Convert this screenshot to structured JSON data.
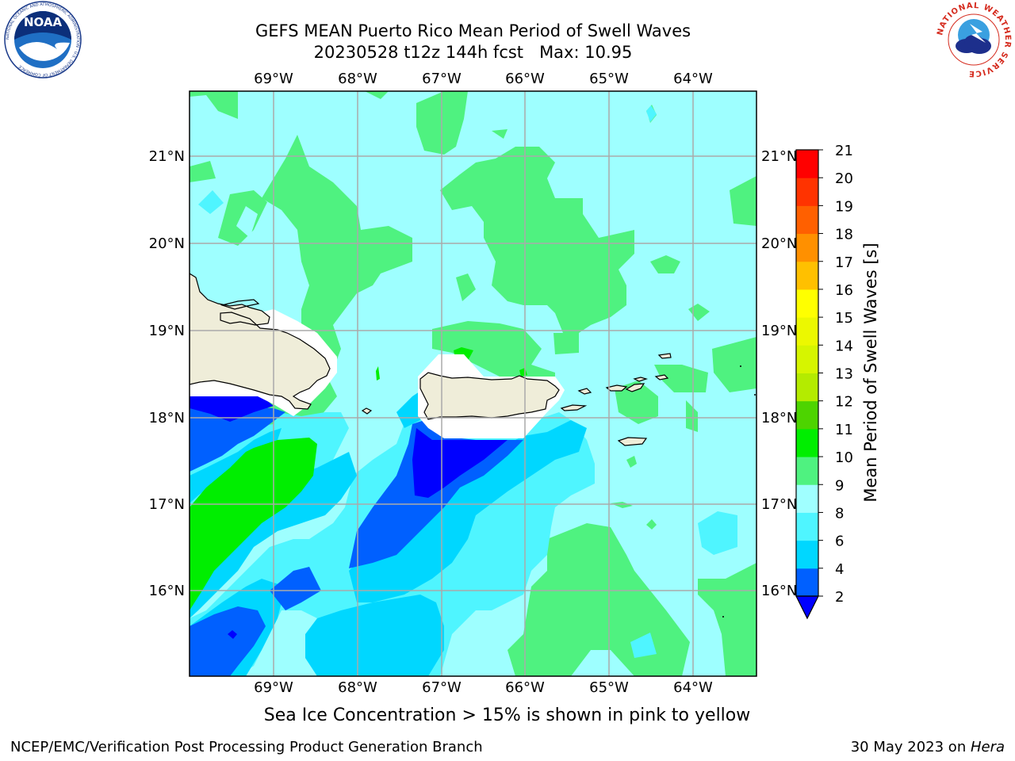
{
  "title_line1": "GEFS MEAN Puerto Rico Mean Period of Swell Waves",
  "title_line2": "20230528 t12z 144h fcst   Max: 10.95",
  "noaa_logo": {
    "name": "noaa-logo",
    "center_text": "NOAA",
    "ring_text": "NATIONAL OCEANIC AND ATMOSPHERIC ADMINISTRATION · U.S. DEPARTMENT OF COMMERCE"
  },
  "nws_logo": {
    "name": "nws-logo",
    "ring_text": "NATIONAL WEATHER SERVICE"
  },
  "map": {
    "lon_labels": [
      "69°W",
      "68°W",
      "67°W",
      "66°W",
      "65°W",
      "64°W"
    ],
    "lat_labels": [
      "21°N",
      "20°N",
      "19°N",
      "18°N",
      "17°N",
      "16°N"
    ],
    "colors": {
      "land": "#efedd9",
      "ocean_default": "#9effff",
      "gridline": "#aaaaaa"
    }
  },
  "colorbar": {
    "label": "Mean Period of Swell Waves [s]",
    "ticks": [
      "2",
      "4",
      "6",
      "8",
      "9",
      "10",
      "11",
      "12",
      "13",
      "14",
      "15",
      "16",
      "17",
      "18",
      "19",
      "20",
      "21"
    ],
    "bins": [
      {
        "from": 2,
        "to": 4,
        "color": "#0060ff"
      },
      {
        "from": 4,
        "to": 6,
        "color": "#00d7ff"
      },
      {
        "from": 6,
        "to": 8,
        "color": "#4ff5ff"
      },
      {
        "from": 8,
        "to": 9,
        "color": "#a0ffff"
      },
      {
        "from": 9,
        "to": 10,
        "color": "#4ff280"
      },
      {
        "from": 10,
        "to": 11,
        "color": "#00ee00"
      },
      {
        "from": 11,
        "to": 12,
        "color": "#4dd400"
      },
      {
        "from": 12,
        "to": 13,
        "color": "#b4eb00"
      },
      {
        "from": 13,
        "to": 14,
        "color": "#d6f500"
      },
      {
        "from": 14,
        "to": 15,
        "color": "#ecf800"
      },
      {
        "from": 15,
        "to": 16,
        "color": "#ffff00"
      },
      {
        "from": 16,
        "to": 17,
        "color": "#ffc000"
      },
      {
        "from": 17,
        "to": 18,
        "color": "#ff9000"
      },
      {
        "from": 18,
        "to": 19,
        "color": "#ff6000"
      },
      {
        "from": 19,
        "to": 20,
        "color": "#ff3300"
      },
      {
        "from": 20,
        "to": 21,
        "color": "#ff0000"
      }
    ],
    "under_color": "#0000ff"
  },
  "subnote": "Sea Ice Concentration > 15% is shown in pink to yellow",
  "footer_left": "NCEP/EMC/Verification Post Processing Product Generation Branch",
  "footer_right_prefix": "30 May 2023 on ",
  "footer_right_italic": "Hera"
}
